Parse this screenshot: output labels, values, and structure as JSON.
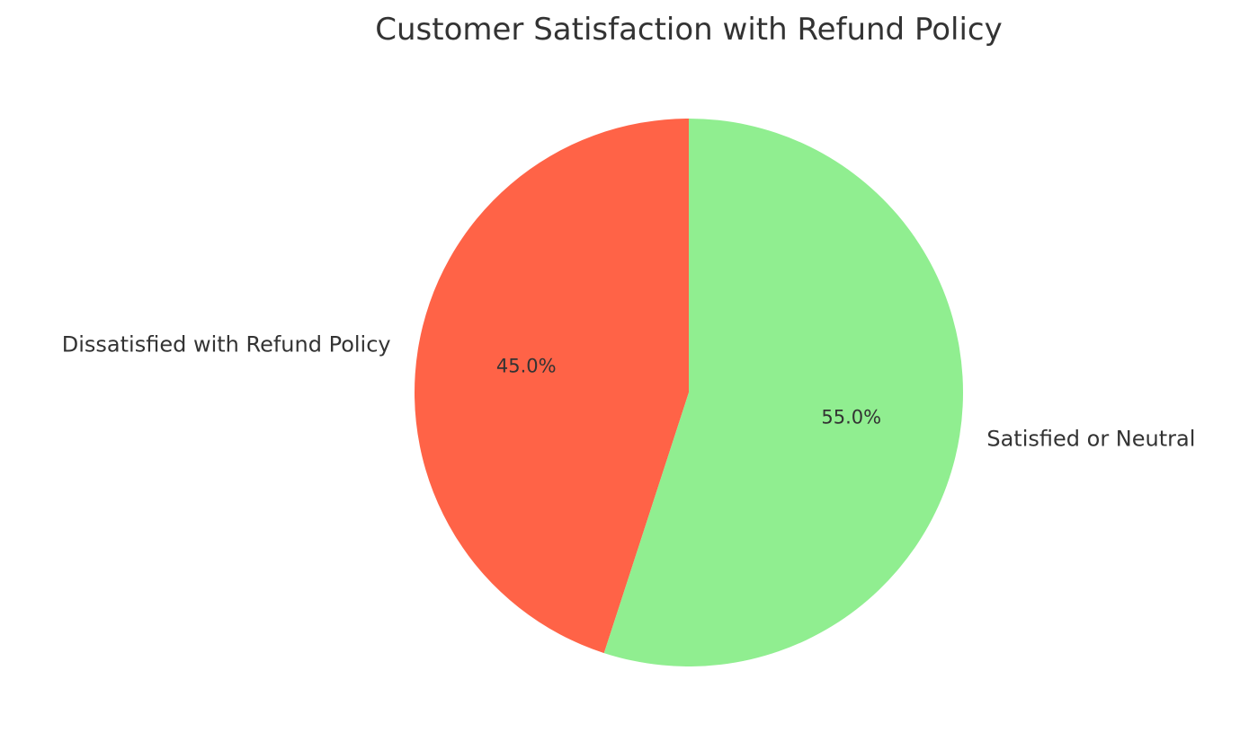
{
  "chart_data": {
    "type": "pie",
    "title": "Customer Satisfaction with Refund Policy",
    "slices": [
      {
        "label": "Dissatisfied with Refund Policy",
        "value": 45.0,
        "pct_label": "45.0%",
        "color": "#ff6347"
      },
      {
        "label": "Satisfied or Neutral",
        "value": 55.0,
        "pct_label": "55.0%",
        "color": "#90ee90"
      }
    ],
    "start_angle_deg": 90,
    "direction": "counterclockwise",
    "legend": "none"
  }
}
